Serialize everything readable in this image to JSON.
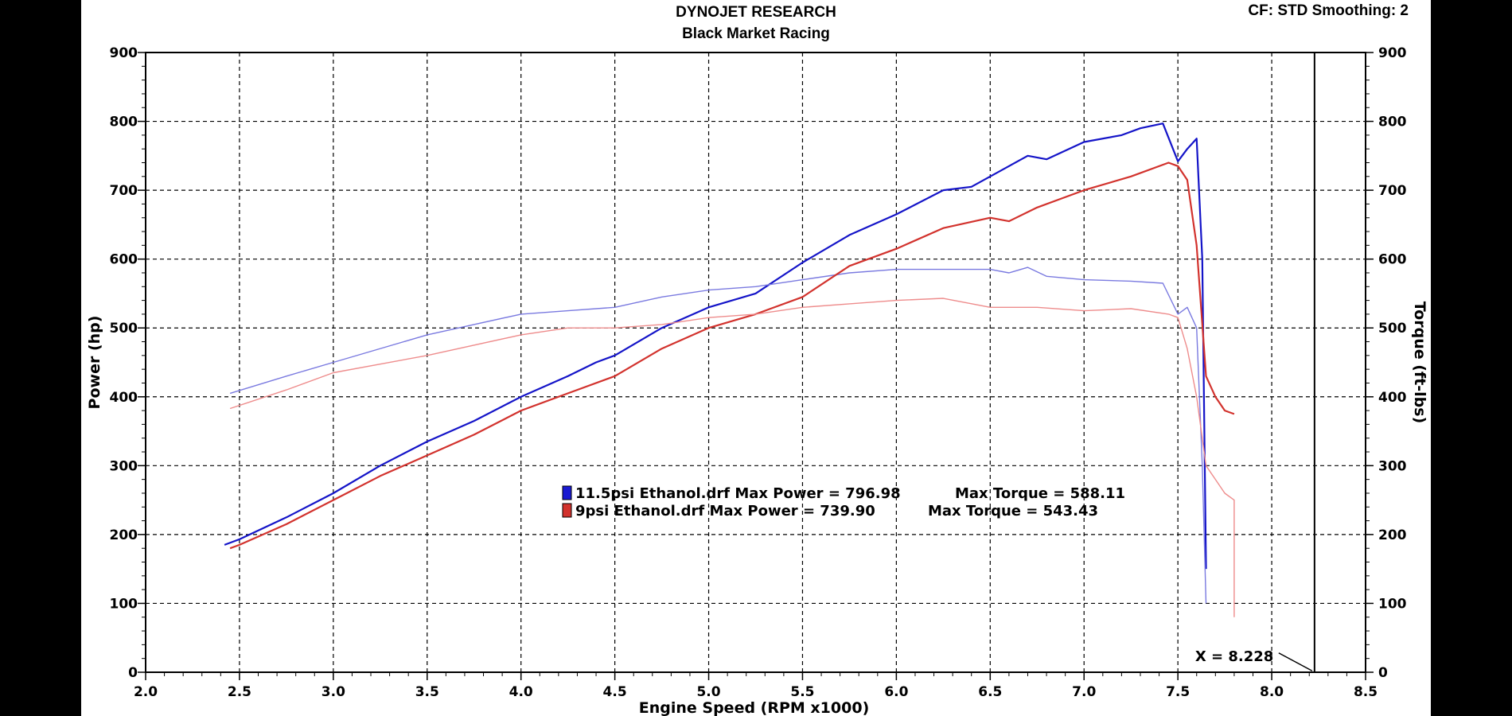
{
  "header": {
    "title": "DYNOJET RESEARCH",
    "subtitle": "Black Market Racing",
    "settings": "CF: STD  Smoothing: 2"
  },
  "chart_data": {
    "type": "line",
    "title": "DYNOJET RESEARCH",
    "subtitle": "Black Market Racing",
    "xlabel": "Engine Speed (RPM x1000)",
    "ylabel": "Power (hp)",
    "y2label": "Torque (ft-lbs)",
    "xlim": [
      2.0,
      8.5
    ],
    "ylim": [
      0,
      900
    ],
    "y2lim": [
      0,
      900
    ],
    "x_ticks": [
      "2.0",
      "2.5",
      "3.0",
      "3.5",
      "4.0",
      "4.5",
      "5.0",
      "5.5",
      "6.0",
      "6.5",
      "7.0",
      "7.5",
      "8.0",
      "8.5"
    ],
    "y_ticks": [
      "0",
      "100",
      "200",
      "300",
      "400",
      "500",
      "600",
      "700",
      "800",
      "900"
    ],
    "grid": true,
    "cursor": {
      "x": 8.228,
      "label": "X = 8.228"
    },
    "legend": [
      {
        "text": "11.5psi Ethanol.drf Max Power = 796.98",
        "torque_text": "Max Torque = 588.11",
        "color": "#1a1ad2"
      },
      {
        "text": "9psi Ethanol.drf Max Power = 739.90",
        "torque_text": "Max Torque = 543.43",
        "color": "#d2322d"
      }
    ],
    "series": [
      {
        "name": "11.5psi Ethanol.drf",
        "metric": "power",
        "color": "#1414c8",
        "x": [
          2.42,
          2.5,
          2.75,
          3.0,
          3.25,
          3.5,
          3.75,
          4.0,
          4.25,
          4.4,
          4.5,
          4.75,
          5.0,
          5.25,
          5.5,
          5.75,
          6.0,
          6.25,
          6.4,
          6.5,
          6.6,
          6.7,
          6.8,
          7.0,
          7.2,
          7.3,
          7.42,
          7.5,
          7.55,
          7.6,
          7.63,
          7.65
        ],
        "y": [
          185,
          193,
          225,
          260,
          300,
          335,
          365,
          400,
          430,
          450,
          460,
          500,
          530,
          550,
          595,
          635,
          665,
          700,
          705,
          720,
          735,
          750,
          745,
          770,
          780,
          790,
          797,
          742,
          760,
          775,
          600,
          150
        ]
      },
      {
        "name": "11.5psi Ethanol.drf",
        "metric": "torque",
        "color": "#7a7ae0",
        "x": [
          2.45,
          2.75,
          3.0,
          3.5,
          4.0,
          4.25,
          4.5,
          4.75,
          5.0,
          5.25,
          5.5,
          5.75,
          6.0,
          6.25,
          6.5,
          6.6,
          6.7,
          6.8,
          7.0,
          7.25,
          7.42,
          7.5,
          7.55,
          7.6,
          7.63,
          7.65
        ],
        "y": [
          405,
          430,
          450,
          490,
          520,
          525,
          530,
          545,
          555,
          560,
          570,
          580,
          585,
          585,
          585,
          580,
          588,
          575,
          570,
          568,
          565,
          520,
          530,
          500,
          300,
          100
        ]
      },
      {
        "name": "9psi Ethanol.drf",
        "metric": "power",
        "color": "#d2322d",
        "x": [
          2.45,
          2.5,
          2.75,
          3.0,
          3.25,
          3.5,
          3.75,
          4.0,
          4.25,
          4.5,
          4.75,
          5.0,
          5.25,
          5.5,
          5.75,
          6.0,
          6.25,
          6.5,
          6.6,
          6.75,
          7.0,
          7.25,
          7.45,
          7.5,
          7.55,
          7.6,
          7.65,
          7.7,
          7.75,
          7.8
        ],
        "y": [
          180,
          185,
          215,
          250,
          285,
          315,
          345,
          380,
          405,
          430,
          470,
          500,
          520,
          545,
          590,
          615,
          645,
          660,
          655,
          675,
          700,
          720,
          740,
          735,
          715,
          620,
          430,
          400,
          380,
          375
        ]
      },
      {
        "name": "9psi Ethanol.drf",
        "metric": "torque",
        "color": "#ee8c8c",
        "x": [
          2.45,
          2.75,
          3.0,
          3.5,
          4.0,
          4.25,
          4.5,
          4.75,
          5.0,
          5.25,
          5.5,
          5.75,
          6.0,
          6.25,
          6.5,
          6.75,
          7.0,
          7.25,
          7.45,
          7.5,
          7.55,
          7.6,
          7.65,
          7.7,
          7.75,
          7.8,
          7.8,
          7.8
        ],
        "y": [
          383,
          410,
          435,
          460,
          490,
          500,
          500,
          505,
          515,
          520,
          530,
          535,
          540,
          543,
          530,
          530,
          525,
          528,
          520,
          515,
          470,
          400,
          300,
          280,
          260,
          250,
          90,
          80
        ]
      }
    ]
  }
}
